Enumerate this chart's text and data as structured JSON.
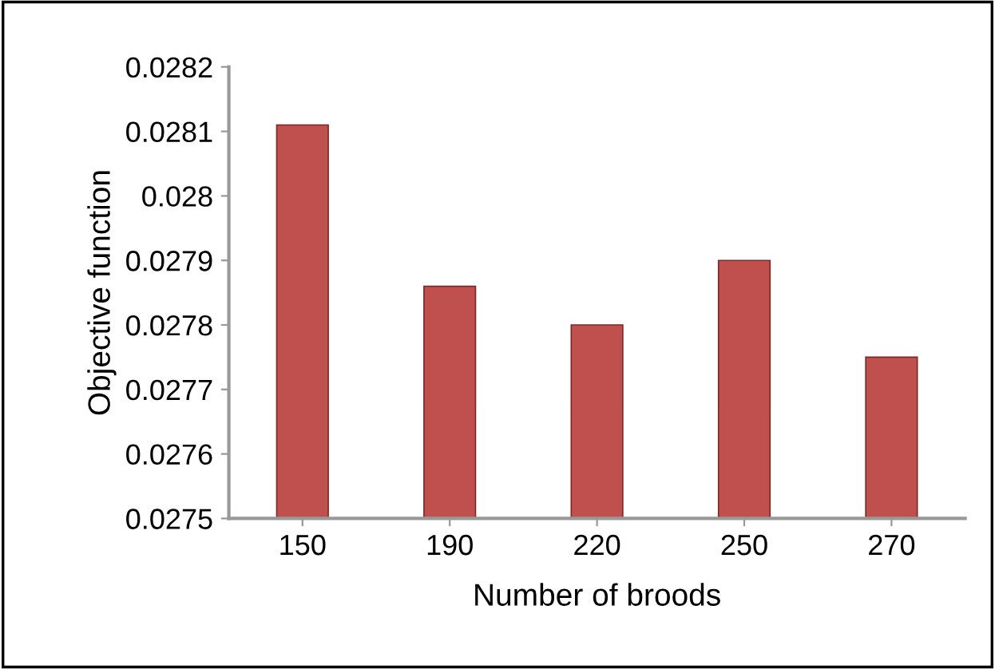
{
  "chart_data": {
    "type": "bar",
    "xlabel": "Number of broods",
    "ylabel": "Objective function",
    "categories": [
      "150",
      "190",
      "220",
      "250",
      "270"
    ],
    "values": [
      0.02811,
      0.02786,
      0.0278,
      0.0279,
      0.02775
    ],
    "color": "#c0504d",
    "ylim": [
      0.0275,
      0.0282
    ],
    "yticks": [
      {
        "value": 0.0275,
        "label": "0.0275"
      },
      {
        "value": 0.0276,
        "label": "0.0276"
      },
      {
        "value": 0.0277,
        "label": "0.0277"
      },
      {
        "value": 0.0278,
        "label": "0.0278"
      },
      {
        "value": 0.0279,
        "label": "0.0279"
      },
      {
        "value": 0.028,
        "label": "0.028"
      },
      {
        "value": 0.0281,
        "label": "0.0281"
      },
      {
        "value": 0.0282,
        "label": "0.0282"
      }
    ],
    "grid": false,
    "legend": false
  }
}
